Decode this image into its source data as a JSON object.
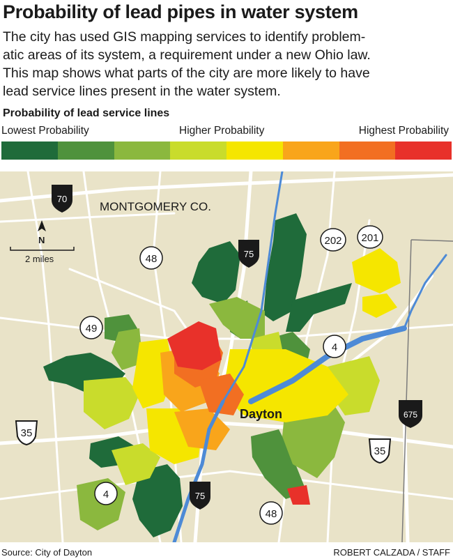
{
  "title": "Probability of lead pipes in water system",
  "description_lines": [
    "The city has used GIS mapping services to identify problem-",
    "atic areas of its system, a requirement under a new Ohio law.",
    "This map shows what parts of the city are more likely to have",
    "lead service lines present in the water system."
  ],
  "legend": {
    "title": "Probability of lead service lines",
    "low_label": "Lowest Probability",
    "mid_label": "Higher Probability",
    "high_label": "Highest Probability",
    "colors": [
      "#1f6b3a",
      "#4f923c",
      "#8bb83e",
      "#c9dc2c",
      "#f5e600",
      "#f9a51b",
      "#f26f22",
      "#e8312a"
    ]
  },
  "map": {
    "county_label": "MONTGOMERY CO.",
    "city_label": "Dayton",
    "north_label": "N",
    "scale_label": "2 miles",
    "routes": {
      "i70": "70",
      "i75_north": "75",
      "i75_south": "75",
      "i675": "675",
      "us35_west": "35",
      "us35_east": "35",
      "sr48_north": "48",
      "sr48_south": "48",
      "sr49": "49",
      "sr4_west": "4",
      "sr4_east": "4",
      "sr202": "202",
      "sr201": "201"
    },
    "colors": {
      "land": "#e9e3c8",
      "roads": "#ffffff",
      "river": "#4d8ad6",
      "boundary": "#7b7b7b"
    }
  },
  "footer": {
    "source": "Source: City of Dayton",
    "credit": "ROBERT CALZADA / STAFF"
  }
}
